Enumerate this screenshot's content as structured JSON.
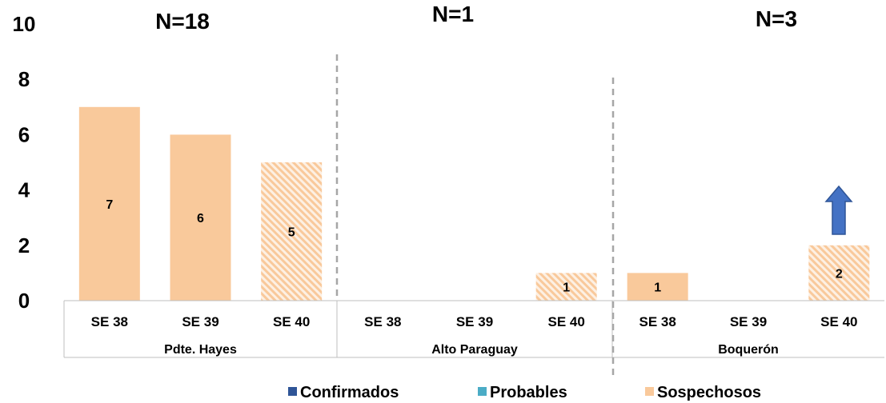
{
  "chart_data": {
    "type": "bar",
    "ylim": [
      0,
      10
    ],
    "yticks": [
      "0",
      "2",
      "4",
      "6",
      "8",
      "10"
    ],
    "groups": [
      {
        "name": "Pdte. Hayes",
        "n_label": "N=18",
        "categories": [
          "SE 38",
          "SE 39",
          "SE 40"
        ]
      },
      {
        "name": "Alto Paraguay",
        "n_label": "N=1",
        "categories": [
          "SE 38",
          "SE 39",
          "SE 40"
        ]
      },
      {
        "name": "Boquerón",
        "n_label": "N=3",
        "categories": [
          "SE 38",
          "SE 39",
          "SE 40"
        ]
      }
    ],
    "series": [
      {
        "name": "Confirmados",
        "color": "#2f5597",
        "values": [
          [
            0,
            0,
            0
          ],
          [
            0,
            0,
            0
          ],
          [
            0,
            0,
            0
          ]
        ]
      },
      {
        "name": "Probables",
        "color": "#4bacc6",
        "values": [
          [
            0,
            0,
            0
          ],
          [
            0,
            0,
            0
          ],
          [
            0,
            0,
            0
          ]
        ]
      },
      {
        "name": "Sospechosos",
        "color": "#f9c99b",
        "values": [
          [
            7,
            6,
            5
          ],
          [
            0,
            0,
            1
          ],
          [
            1,
            0,
            2
          ]
        ]
      }
    ],
    "hatched_category": "SE 40",
    "data_labels": [
      [
        "7",
        "6",
        "5"
      ],
      [
        "",
        "",
        "1"
      ],
      [
        "1",
        "",
        "2"
      ]
    ],
    "annotation": {
      "type": "arrow-up",
      "group": "Boquerón",
      "category": "SE 40",
      "color": "#4472c4"
    },
    "legend_position": "bottom",
    "grid": false
  }
}
